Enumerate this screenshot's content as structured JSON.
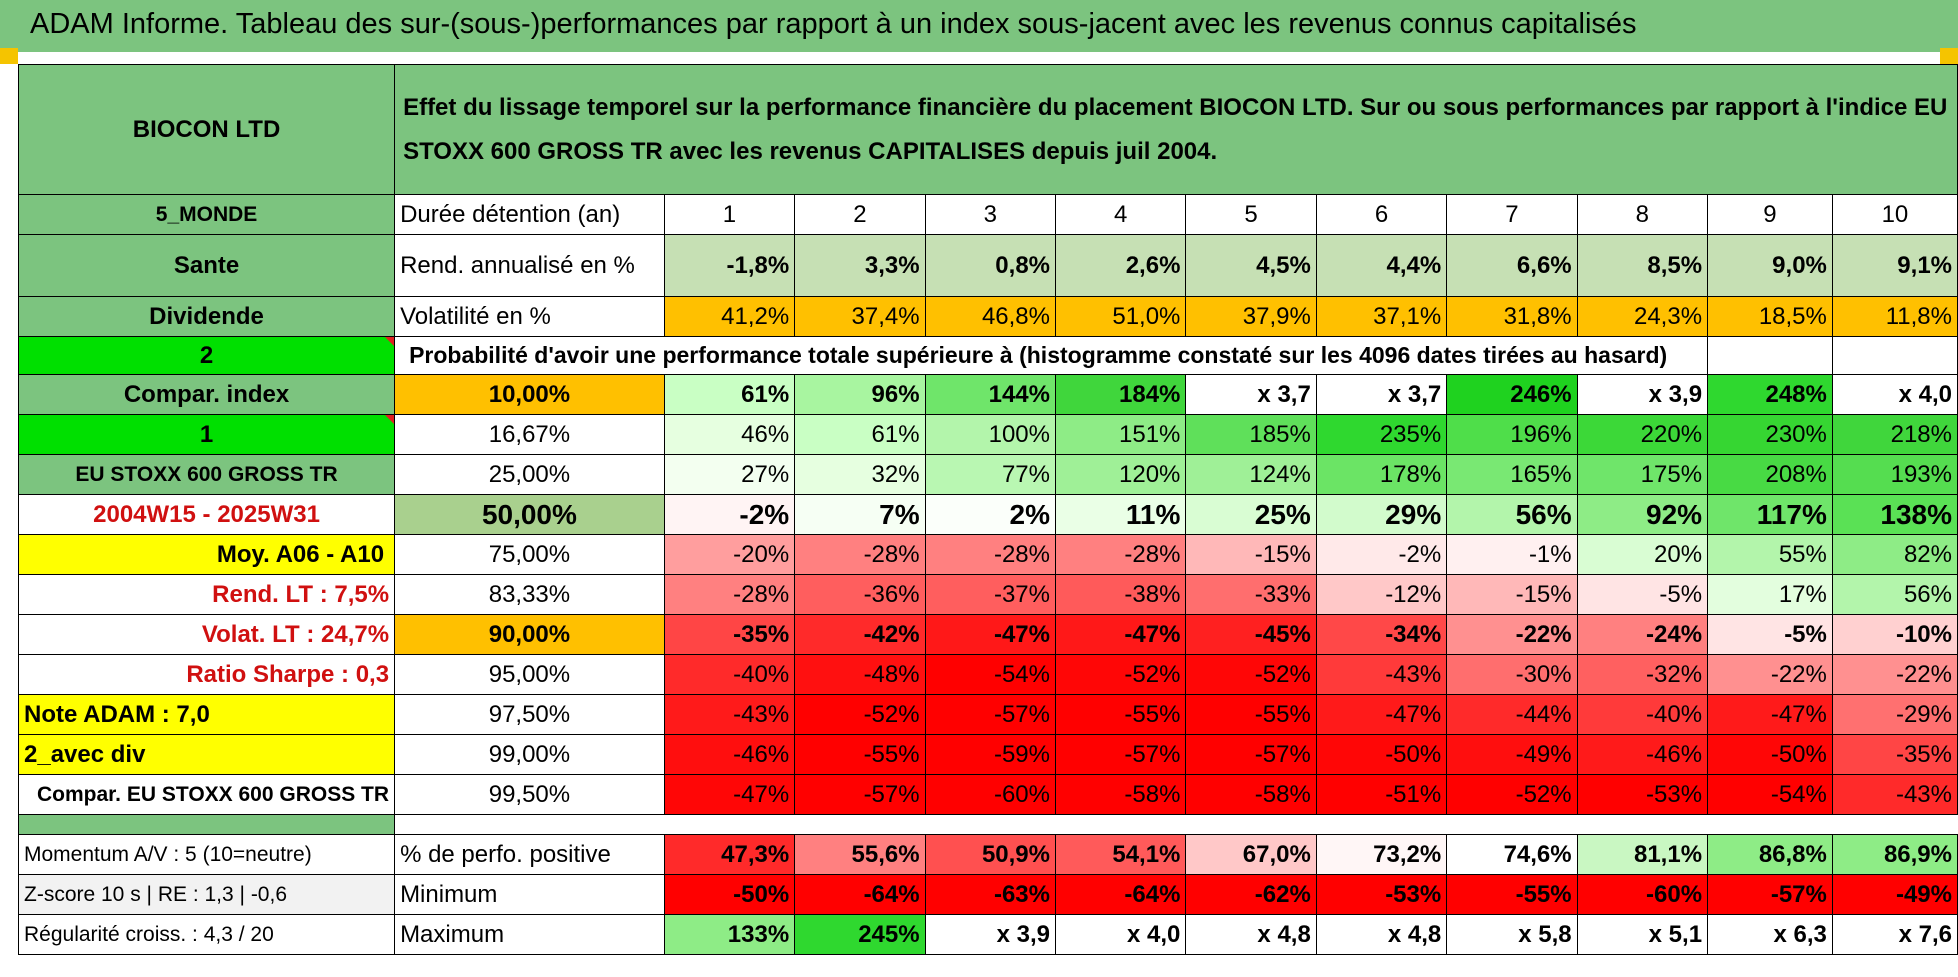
{
  "banner": {
    "title": "ADAM Informe. Tableau des sur-(sous-)performances par rapport à un index sous-jacent avec les revenus connus capitalisés"
  },
  "header": {
    "company": "BIOCON LTD",
    "description": "Effet du lissage temporel sur la performance financière du placement BIOCON LTD. Sur ou sous performances par rapport à l'indice EU STOXX 600 GROSS TR avec les revenus CAPITALISES depuis juil 2004."
  },
  "colors": {
    "banner": "#7cc47f",
    "header_green": "#7cc47f",
    "yellow": "#ffff00",
    "orange": "#ffc000",
    "bright_green": "#00e000",
    "red_text": "#d01010"
  },
  "left_labels": {
    "zone": "5_MONDE",
    "sector": "Sante",
    "type": "Dividende",
    "num_a": "2",
    "compar_index": "Compar. index",
    "num_b": "1",
    "index_name": "EU STOXX 600 GROSS TR",
    "period": "2004W15 - 2025W31",
    "moy": "Moy. A06 - A10",
    "rend_lt": "Rend. LT :    7,5%",
    "volat_lt": "Volat. LT :    24,7%",
    "sharpe": "Ratio Sharpe :    0,3",
    "note": "Note ADAM : 7,0",
    "div": "2_avec div",
    "compar_long": "Compar. EU STOXX 600 GROSS TR",
    "momentum": "Momentum A/V : 5 (10=neutre)",
    "zscore": "Z-score 10 s | RE : 1,3 | -0,6",
    "regularite": "Régularité croiss. : 4,3 / 20"
  },
  "rows": {
    "duration": {
      "label": "Durée détention (an)",
      "values": [
        "1",
        "2",
        "3",
        "4",
        "5",
        "6",
        "7",
        "8",
        "9",
        "10"
      ]
    },
    "rend": {
      "label": "Rend. annualisé en %",
      "values": [
        "-1,8%",
        "3,3%",
        "0,8%",
        "2,6%",
        "4,5%",
        "4,4%",
        "6,6%",
        "8,5%",
        "9,0%",
        "9,1%"
      ]
    },
    "volat": {
      "label": "Volatilité en %",
      "values": [
        "41,2%",
        "37,4%",
        "46,8%",
        "51,0%",
        "37,9%",
        "37,1%",
        "31,8%",
        "24,3%",
        "18,5%",
        "11,8%"
      ]
    },
    "proba_title": "Probabilité d'avoir une performance totale supérieure à (histogramme constaté sur les 4096 dates tirées au hasard)",
    "quantiles": [
      {
        "p": "10,00%",
        "values": [
          "61%",
          "96%",
          "144%",
          "184%",
          "x 3,7",
          "x 3,7",
          "246%",
          "x 3,9",
          "248%",
          "x 4,0"
        ]
      },
      {
        "p": "16,67%",
        "values": [
          "46%",
          "61%",
          "100%",
          "151%",
          "185%",
          "235%",
          "196%",
          "220%",
          "230%",
          "218%"
        ]
      },
      {
        "p": "25,00%",
        "values": [
          "27%",
          "32%",
          "77%",
          "120%",
          "124%",
          "178%",
          "165%",
          "175%",
          "208%",
          "193%"
        ]
      },
      {
        "p": "50,00%",
        "values": [
          "-2%",
          "7%",
          "2%",
          "11%",
          "25%",
          "29%",
          "56%",
          "92%",
          "117%",
          "138%"
        ]
      },
      {
        "p": "75,00%",
        "values": [
          "-20%",
          "-28%",
          "-28%",
          "-28%",
          "-15%",
          "-2%",
          "-1%",
          "20%",
          "55%",
          "82%"
        ]
      },
      {
        "p": "83,33%",
        "values": [
          "-28%",
          "-36%",
          "-37%",
          "-38%",
          "-33%",
          "-12%",
          "-15%",
          "-5%",
          "17%",
          "56%"
        ]
      },
      {
        "p": "90,00%",
        "values": [
          "-35%",
          "-42%",
          "-47%",
          "-47%",
          "-45%",
          "-34%",
          "-22%",
          "-24%",
          "-5%",
          "-10%"
        ]
      },
      {
        "p": "95,00%",
        "values": [
          "-40%",
          "-48%",
          "-54%",
          "-52%",
          "-52%",
          "-43%",
          "-30%",
          "-32%",
          "-22%",
          "-22%"
        ]
      },
      {
        "p": "97,50%",
        "values": [
          "-43%",
          "-52%",
          "-57%",
          "-55%",
          "-55%",
          "-47%",
          "-44%",
          "-40%",
          "-47%",
          "-29%"
        ]
      },
      {
        "p": "99,00%",
        "values": [
          "-46%",
          "-55%",
          "-59%",
          "-57%",
          "-57%",
          "-50%",
          "-49%",
          "-46%",
          "-50%",
          "-35%"
        ]
      },
      {
        "p": "99,50%",
        "values": [
          "-47%",
          "-57%",
          "-60%",
          "-58%",
          "-58%",
          "-51%",
          "-52%",
          "-53%",
          "-54%",
          "-43%"
        ]
      }
    ],
    "positive": {
      "label": "% de perfo. positive",
      "values": [
        "47,3%",
        "55,6%",
        "50,9%",
        "54,1%",
        "67,0%",
        "73,2%",
        "74,6%",
        "81,1%",
        "86,8%",
        "86,9%"
      ]
    },
    "minimum": {
      "label": "Minimum",
      "values": [
        "-50%",
        "-64%",
        "-63%",
        "-64%",
        "-62%",
        "-53%",
        "-55%",
        "-60%",
        "-57%",
        "-49%"
      ]
    },
    "maximum": {
      "label": "Maximum",
      "values": [
        "133%",
        "245%",
        "x 3,9",
        "x 4,0",
        "x 4,8",
        "x 4,8",
        "x 5,8",
        "x 5,1",
        "x 6,3",
        "x 7,6"
      ]
    }
  }
}
